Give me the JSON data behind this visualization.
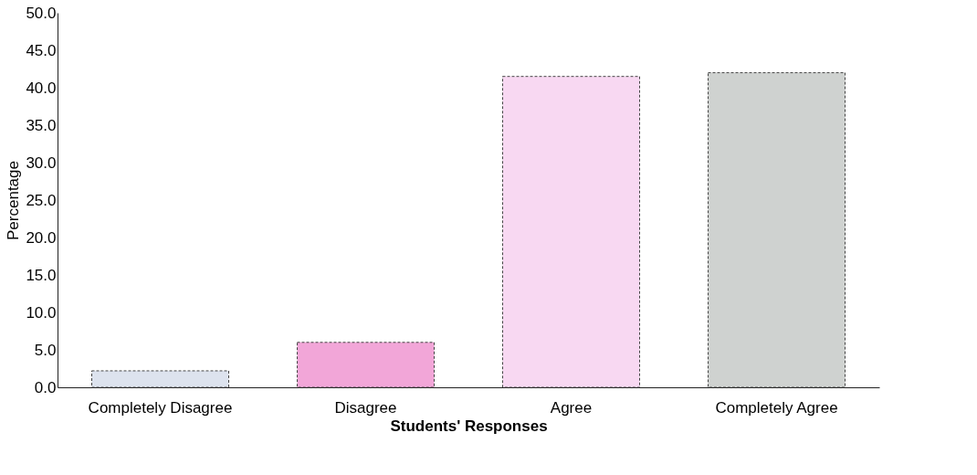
{
  "chart_data": {
    "type": "bar",
    "xlabel": "Students' Responses",
    "ylabel": "Percentage",
    "categories": [
      "Completely Disagree",
      "Disagree",
      "Agree",
      "Completely Agree"
    ],
    "values": [
      2.2,
      6.0,
      41.5,
      42.0
    ],
    "colors": [
      "#dde3ee",
      "#f2a6d8",
      "#f8d8f2",
      "#cfd2d0"
    ],
    "ylim": [
      0,
      50
    ],
    "yticks": [
      {
        "value": 0,
        "label": "0.0"
      },
      {
        "value": 5,
        "label": "5.0"
      },
      {
        "value": 10,
        "label": "10.0"
      },
      {
        "value": 15,
        "label": "15.0"
      },
      {
        "value": 20,
        "label": "20.0"
      },
      {
        "value": 25,
        "label": "25.0"
      },
      {
        "value": 30,
        "label": "30.0"
      },
      {
        "value": 35,
        "label": "35.0"
      },
      {
        "value": 40,
        "label": "40.0"
      },
      {
        "value": 45,
        "label": "45.0"
      },
      {
        "value": 50,
        "label": "50.0"
      }
    ],
    "grid": false
  }
}
